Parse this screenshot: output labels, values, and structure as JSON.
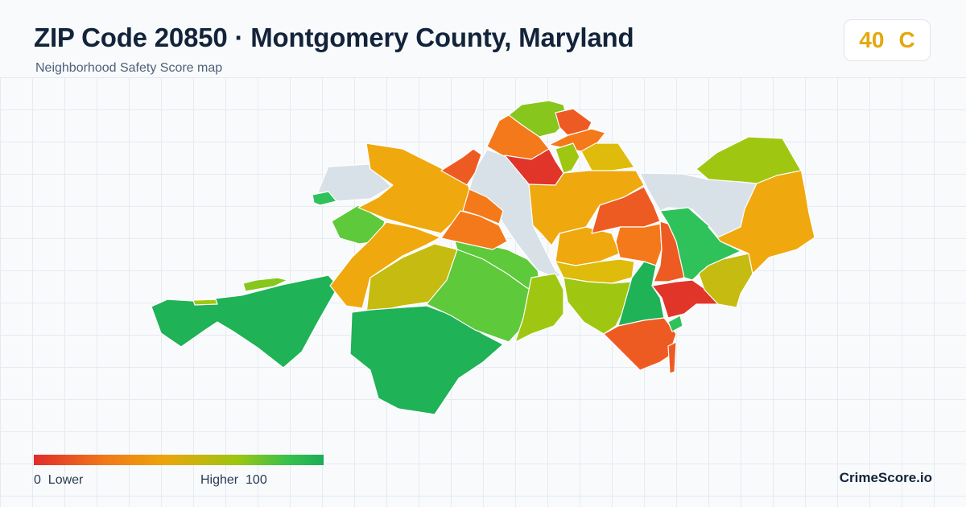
{
  "header": {
    "title": "ZIP Code 20850 · Montgomery County, Maryland",
    "subtitle": "Neighborhood Safety Score map"
  },
  "score": {
    "value": "40",
    "grade": "C",
    "color": "#e3a90d"
  },
  "legend": {
    "low_value": "0",
    "low_label": "Lower",
    "high_label": "Higher",
    "high_value": "100",
    "colors": [
      "#e02b2b",
      "#f07a18",
      "#eda40c",
      "#9cc60f",
      "#35c04e",
      "#1bae57"
    ]
  },
  "brand": {
    "name": "CrimeScore.io"
  },
  "map": {
    "no_data_color": "#d9e1e8",
    "palette": {
      "red": "#e1352a",
      "red_orange": "#ee5b22",
      "orange": "#f4791b",
      "amber": "#efa80e",
      "gold": "#dfbb0c",
      "olive": "#c6bb10",
      "yellow_green": "#9fc712",
      "lime": "#86c61d",
      "light_green": "#5ec93a",
      "green": "#2fc25a",
      "dark_green": "#1fb257"
    }
  }
}
